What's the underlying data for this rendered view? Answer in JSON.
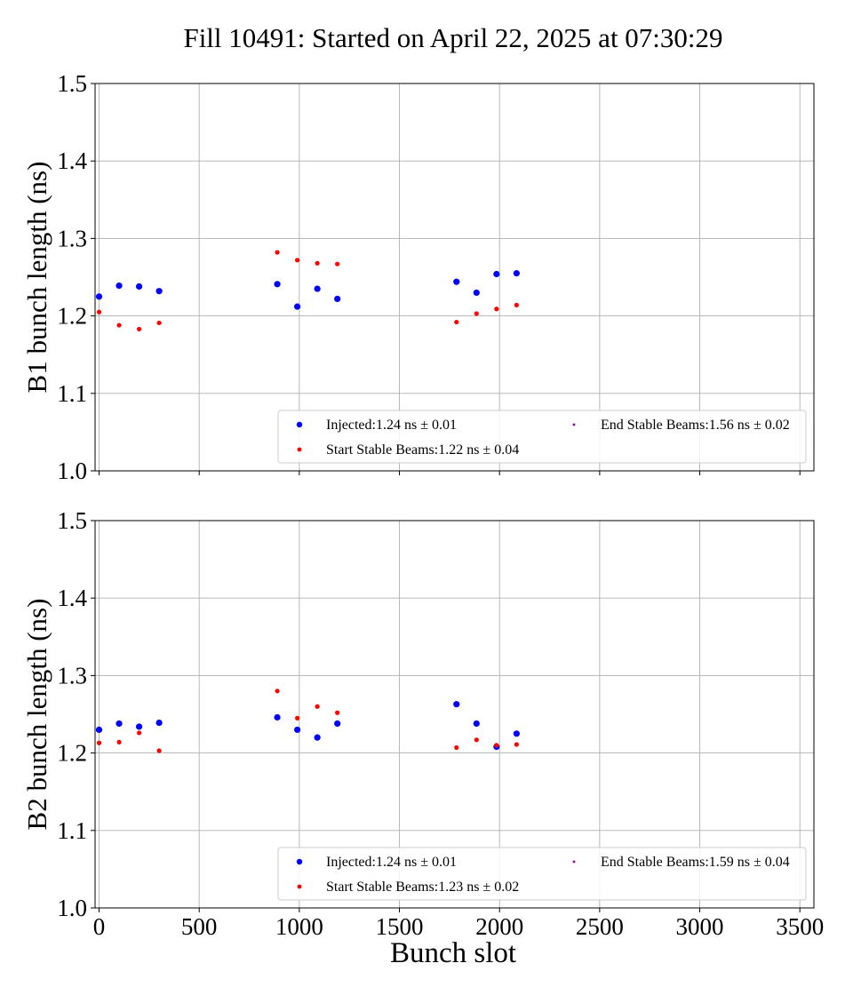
{
  "title": "Fill 10491: Started on April 22, 2025 at 07:30:29",
  "xlabel": "Bunch slot",
  "chart_data": [
    {
      "type": "scatter",
      "ylabel": "B1 bunch length (ns)",
      "xlim": [
        -20,
        3570
      ],
      "ylim": [
        1.0,
        1.5
      ],
      "xticks": [
        0,
        500,
        1000,
        1500,
        2000,
        2500,
        3000,
        3500
      ],
      "xtick_labels_shown": false,
      "yticks": [
        1.0,
        1.1,
        1.2,
        1.3,
        1.4,
        1.5
      ],
      "ytick_labels": [
        "1.0",
        "1.1",
        "1.2",
        "1.3",
        "1.4",
        "1.5"
      ],
      "grid": true,
      "legend_placement": "lower-right",
      "series": [
        {
          "name": "Injected:1.24 ns ± 0.01",
          "color": "#0000ff",
          "marker": "large-dot",
          "x": [
            0,
            100,
            200,
            300,
            890,
            990,
            1090,
            1190,
            1785,
            1885,
            1985,
            2085
          ],
          "y": [
            1.225,
            1.239,
            1.238,
            1.232,
            1.241,
            1.212,
            1.235,
            1.222,
            1.244,
            1.23,
            1.254,
            1.255
          ]
        },
        {
          "name": "Start Stable Beams:1.22 ns ± 0.04",
          "color": "#ff0000",
          "marker": "small-dot",
          "x": [
            0,
            100,
            200,
            300,
            890,
            990,
            1090,
            1190,
            1785,
            1885,
            1985,
            2085
          ],
          "y": [
            1.205,
            1.188,
            1.183,
            1.191,
            1.282,
            1.272,
            1.268,
            1.267,
            1.192,
            1.203,
            1.209,
            1.214
          ]
        },
        {
          "name": "End Stable Beams:1.56 ns ± 0.02",
          "color": "#990099",
          "marker": "tiny-square",
          "x": [],
          "y": []
        }
      ]
    },
    {
      "type": "scatter",
      "ylabel": "B2 bunch length (ns)",
      "xlim": [
        -20,
        3570
      ],
      "ylim": [
        1.0,
        1.5
      ],
      "xticks": [
        0,
        500,
        1000,
        1500,
        2000,
        2500,
        3000,
        3500
      ],
      "xtick_labels_shown": true,
      "xtick_labels": [
        "0",
        "500",
        "1000",
        "1500",
        "2000",
        "2500",
        "3000",
        "3500"
      ],
      "yticks": [
        1.0,
        1.1,
        1.2,
        1.3,
        1.4,
        1.5
      ],
      "ytick_labels": [
        "1.0",
        "1.1",
        "1.2",
        "1.3",
        "1.4",
        "1.5"
      ],
      "grid": true,
      "legend_placement": "lower-right",
      "series": [
        {
          "name": "Injected:1.24 ns ± 0.01",
          "color": "#0000ff",
          "marker": "large-dot",
          "x": [
            0,
            100,
            200,
            300,
            890,
            990,
            1090,
            1190,
            1785,
            1885,
            1985,
            2085
          ],
          "y": [
            1.23,
            1.238,
            1.234,
            1.239,
            1.246,
            1.23,
            1.22,
            1.238,
            1.263,
            1.238,
            1.208,
            1.225
          ]
        },
        {
          "name": "Start Stable Beams:1.23 ns ± 0.02",
          "color": "#ff0000",
          "marker": "small-dot",
          "x": [
            0,
            100,
            200,
            300,
            890,
            990,
            1090,
            1190,
            1785,
            1885,
            1985,
            2085
          ],
          "y": [
            1.213,
            1.214,
            1.226,
            1.203,
            1.28,
            1.245,
            1.26,
            1.252,
            1.207,
            1.217,
            1.21,
            1.211
          ]
        },
        {
          "name": "End Stable Beams:1.59 ns ± 0.04",
          "color": "#990099",
          "marker": "tiny-square",
          "x": [],
          "y": []
        }
      ]
    }
  ]
}
